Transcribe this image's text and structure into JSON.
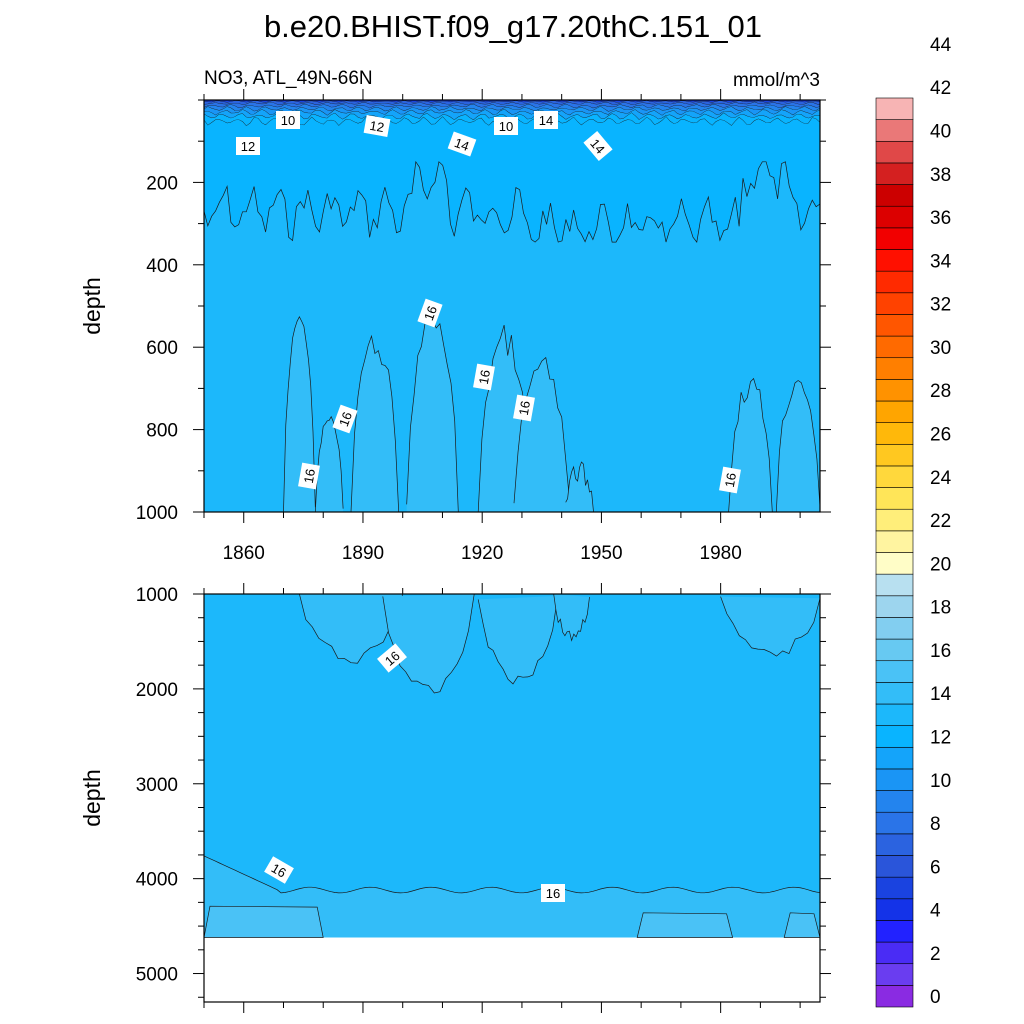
{
  "chart_data": {
    "type": "heatmap",
    "title": "b.e20.BHIST.f09_g17.20thC.151_01",
    "variable_label": "NO3, ATL_49N-66N",
    "units": "mmol/m^3",
    "xlim": [
      1850,
      2005
    ],
    "x_ticks": [
      "1860",
      "1890",
      "1920",
      "1950",
      "1980"
    ],
    "panels": [
      {
        "id": "upper",
        "ylabel": "depth",
        "ylim": [
          0,
          1000
        ],
        "y_ticks": [
          "200",
          "400",
          "600",
          "800",
          "1000"
        ],
        "contour_labels": [
          "10",
          "12",
          "12",
          "10",
          "14",
          "14",
          "14",
          "16",
          "16",
          "16",
          "16",
          "16",
          "16"
        ],
        "bands": [
          {
            "range": "14-16",
            "depth_from": 100,
            "depth_to": 290
          },
          {
            "range": "16-18",
            "depth_from": 550,
            "depth_to": 1000,
            "years": [
              "1872-1878",
              "1888-1898",
              "1905-1912",
              "1920-1940",
              "1983-2005"
            ]
          }
        ]
      },
      {
        "id": "lower",
        "ylabel": "depth",
        "ylim": [
          1000,
          5300
        ],
        "y_ticks": [
          "1000",
          "2000",
          "3000",
          "4000",
          "5000"
        ],
        "contour_labels": [
          "16",
          "16",
          "16"
        ],
        "no_data_below": 4620
      }
    ],
    "colorbar": {
      "levels": [
        "0",
        "2",
        "4",
        "6",
        "8",
        "10",
        "12",
        "14",
        "16",
        "18",
        "20",
        "22",
        "24",
        "26",
        "28",
        "30",
        "32",
        "34",
        "36",
        "38",
        "40",
        "42",
        "44"
      ],
      "colors": [
        "#8a2be2",
        "#6a3df0",
        "#4a2cf5",
        "#2222ff",
        "#1433e8",
        "#1a43e0",
        "#2a55da",
        "#2b63e0",
        "#2a74e8",
        "#2384ee",
        "#1a95f5",
        "#14a4fa",
        "#09b4ff",
        "#1cb8fb",
        "#33bdf8",
        "#4ac2f6",
        "#67c9f2",
        "#82cef0",
        "#9dd5ee",
        "#b8e0f0",
        "#fffdc7",
        "#fff4a0",
        "#ffee7a",
        "#ffe558",
        "#ffd83c",
        "#ffc820",
        "#ffb80a",
        "#ffa500",
        "#ff9200",
        "#ff7f00",
        "#ff6a00",
        "#ff5600",
        "#ff4200",
        "#ff2a00",
        "#ff1000",
        "#f20000",
        "#dc0000",
        "#cc0000",
        "#d42020",
        "#e04848",
        "#ea7878",
        "#f7b4b4"
      ]
    },
    "legend": "right"
  }
}
